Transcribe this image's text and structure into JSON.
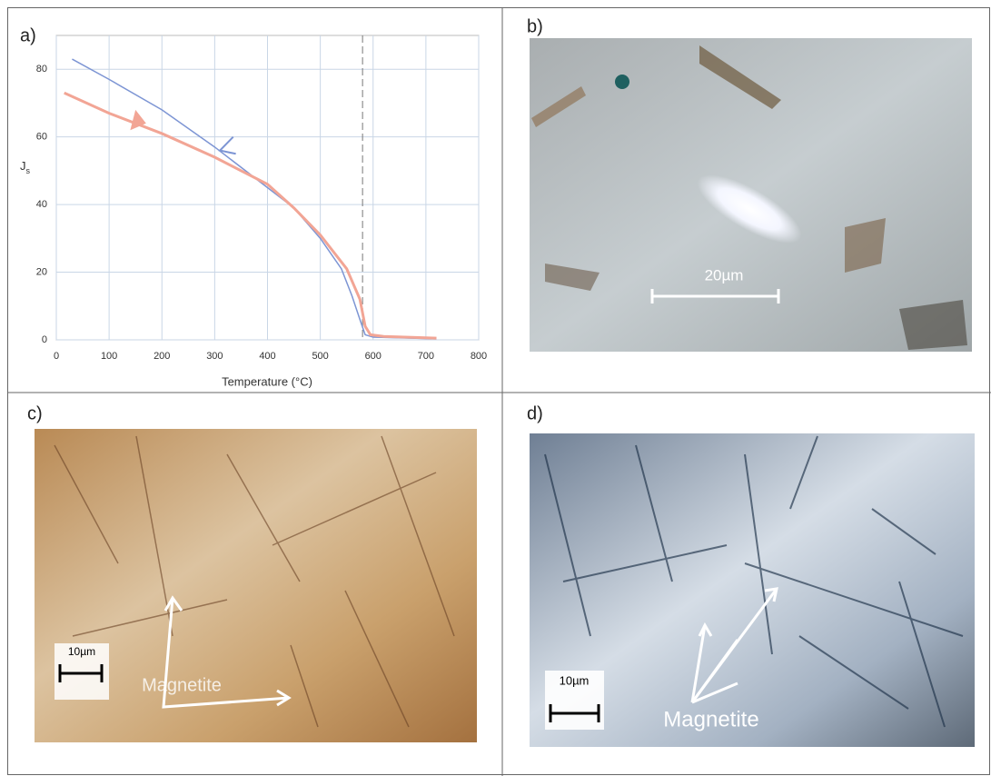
{
  "chart_data": {
    "type": "line",
    "panel_label": "a)",
    "xlabel": "Temperature (°C)",
    "ylabel": "J",
    "ylabel_sub": "s",
    "xlim": [
      0,
      800
    ],
    "xticks": [
      0,
      100,
      200,
      300,
      400,
      500,
      600,
      700,
      800
    ],
    "ylim": [
      0,
      90
    ],
    "yticks": [
      0,
      20,
      40,
      60,
      80
    ],
    "grid": true,
    "vline": 580,
    "series": [
      {
        "color": "#7d95d4",
        "x": [
          30,
          100,
          200,
          300,
          400,
          450,
          500,
          540,
          560,
          575,
          585,
          600,
          720
        ],
        "values": [
          83,
          77,
          68,
          57,
          45,
          39,
          30,
          21,
          13,
          6,
          1.5,
          0.8,
          0.3
        ]
      },
      {
        "color": "#f2a595",
        "x": [
          15,
          100,
          200,
          300,
          400,
          450,
          500,
          550,
          575,
          585,
          595,
          620,
          720
        ],
        "values": [
          73,
          67,
          61,
          54,
          46,
          39,
          31,
          21,
          12,
          4,
          1.5,
          1,
          0.5
        ]
      }
    ]
  },
  "panels": {
    "b": {
      "label": "b)",
      "scale": "20µm"
    },
    "c": {
      "label": "c)",
      "scale": "10µm",
      "annotation": "Magnetite"
    },
    "d": {
      "label": "d)",
      "scale": "10µm",
      "annotation": "Magnetite"
    }
  }
}
